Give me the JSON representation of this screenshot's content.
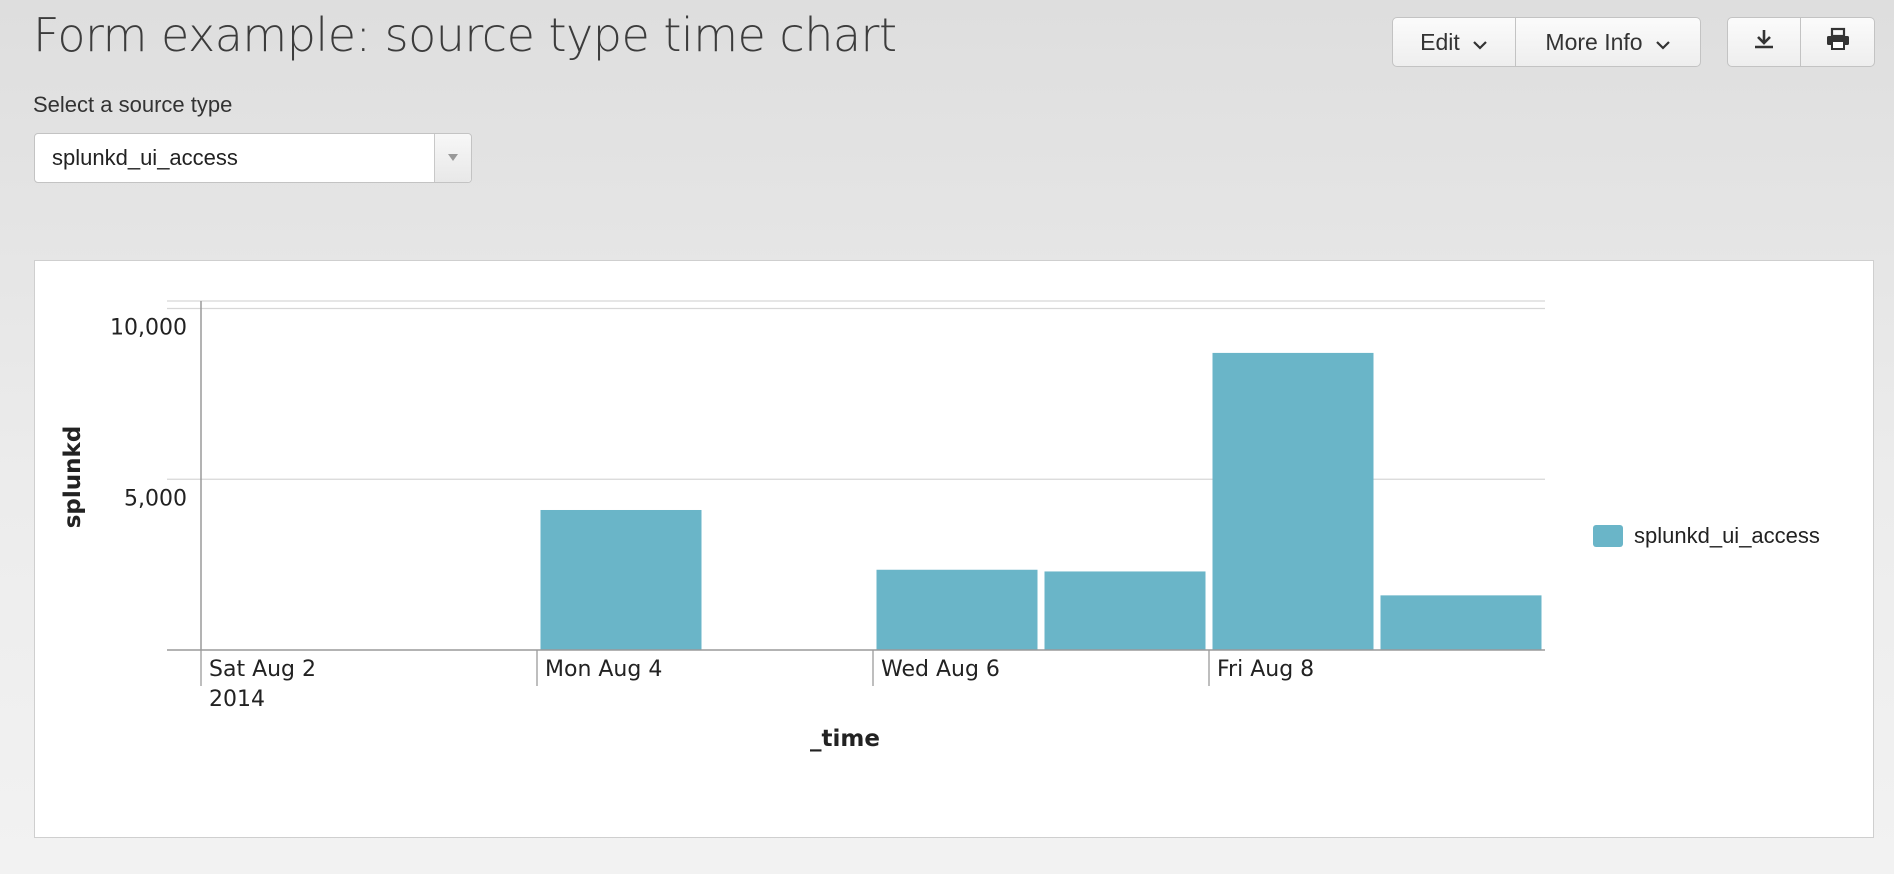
{
  "header": {
    "title": "Form example: source type time chart",
    "edit_label": "Edit",
    "more_info_label": "More Info",
    "export_icon": "download-icon",
    "print_icon": "print-icon"
  },
  "form": {
    "label": "Select a source type",
    "selected_value": "splunkd_ui_access"
  },
  "colors": {
    "bar": "#6ab5c8",
    "grid": "#d7d7d7",
    "axis": "#9a9a9a"
  },
  "chart_data": {
    "type": "bar",
    "x": [
      "2014-08-02",
      "2014-08-03",
      "2014-08-04",
      "2014-08-05",
      "2014-08-06",
      "2014-08-07",
      "2014-08-08",
      "2014-08-09"
    ],
    "series": [
      {
        "name": "splunkd_ui_access",
        "values": [
          0,
          0,
          4100,
          0,
          2350,
          2300,
          8700,
          1600
        ]
      }
    ],
    "xlabel": "_time",
    "ylabel": "splunkd",
    "ylim": [
      0,
      10000
    ],
    "y_ticks": [
      {
        "value": 5000,
        "label": "5,000"
      },
      {
        "value": 10000,
        "label": "10,000"
      }
    ],
    "x_ticks": [
      {
        "x": "2014-08-02",
        "label": "Sat Aug 2",
        "sublabel": "2014"
      },
      {
        "x": "2014-08-04",
        "label": "Mon Aug 4"
      },
      {
        "x": "2014-08-06",
        "label": "Wed Aug 6"
      },
      {
        "x": "2014-08-08",
        "label": "Fri Aug 8"
      }
    ],
    "grid": true,
    "legend": "right"
  }
}
